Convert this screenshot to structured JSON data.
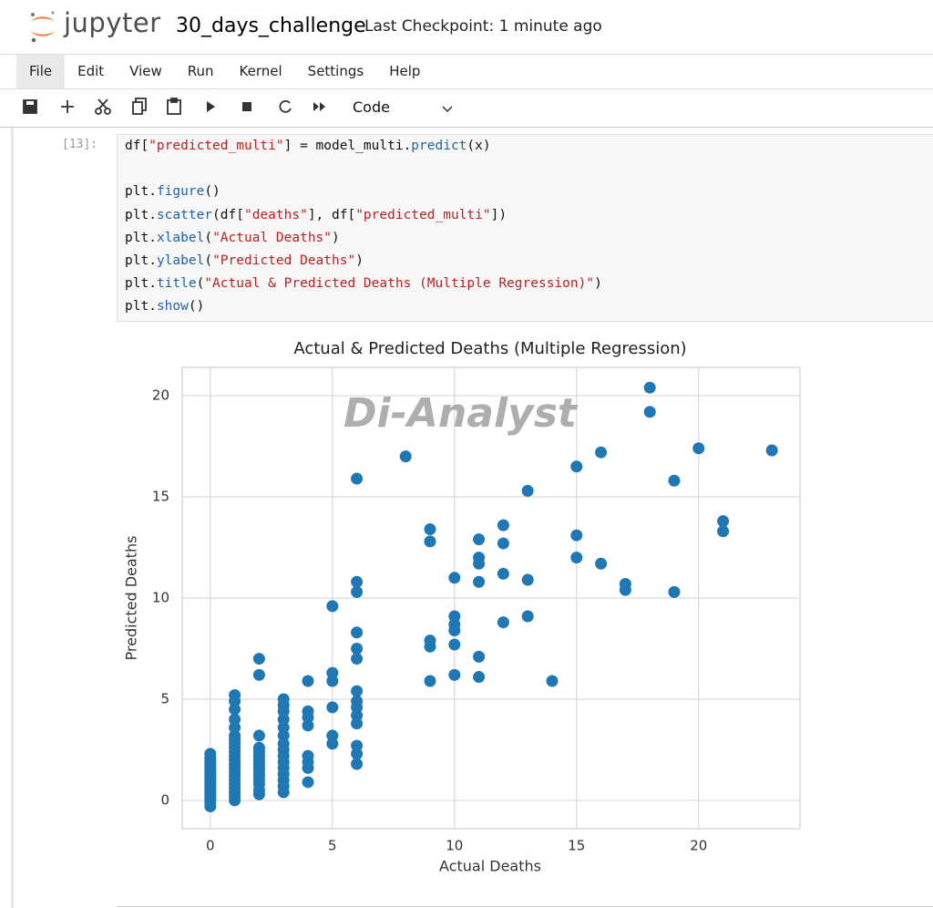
{
  "header": {
    "logo_text": "jupyter",
    "notebook_name": "30_days_challenge",
    "checkpoint": "Last Checkpoint: 1 minute ago"
  },
  "menu": [
    "File",
    "Edit",
    "View",
    "Run",
    "Kernel",
    "Settings",
    "Help"
  ],
  "toolbar": {
    "cell_type": "Code"
  },
  "cell": {
    "prompt": "[13]:",
    "lines": [
      "df[\"predicted_multi\"] = model_multi.predict(x)",
      "plt.figure()",
      "plt.scatter(df[\"deaths\"], df[\"predicted_multi\"])",
      "plt.xlabel(\"Actual Deaths\")",
      "plt.ylabel(\"Predicted Deaths\")",
      "plt.title(\"Actual & Predicted Deaths (Multiple Regression)\")",
      "plt.show()"
    ]
  },
  "chart_data": {
    "type": "scatter",
    "title": "Actual & Predicted Deaths (Multiple Regression)",
    "xlabel": "Actual Deaths",
    "ylabel": "Predicted Deaths",
    "annotation": "Di-Analyst",
    "color": "#1f77b4",
    "grid": true,
    "xlim": [
      -1.15,
      24.15
    ],
    "ylim": [
      -1.4,
      21.4
    ],
    "xticks": [
      0,
      5,
      10,
      15,
      20
    ],
    "yticks": [
      0,
      5,
      10,
      15,
      20
    ],
    "x": [
      0,
      0,
      0,
      0,
      0,
      0,
      0,
      0,
      0,
      0,
      0,
      0,
      0,
      0,
      0,
      0,
      0,
      0,
      0,
      0,
      0,
      0,
      0,
      0,
      0,
      1,
      1,
      1,
      1,
      1,
      1,
      1,
      1,
      1,
      1,
      1,
      1,
      1,
      1,
      1,
      1,
      1,
      1,
      1,
      1,
      1,
      1,
      2,
      2,
      2,
      2,
      2,
      2,
      2,
      2,
      2,
      2,
      2,
      2,
      2,
      2,
      2,
      3,
      3,
      3,
      3,
      3,
      3,
      3,
      3,
      3,
      3,
      3,
      3,
      3,
      3,
      3,
      4,
      4,
      4,
      4,
      4,
      4,
      4,
      4,
      5,
      5,
      5,
      5,
      5,
      5,
      6,
      6,
      6,
      6,
      6,
      6,
      6,
      6,
      6,
      6,
      6,
      6,
      6,
      6,
      8,
      9,
      9,
      9,
      9,
      9,
      10,
      10,
      10,
      10,
      10,
      10,
      11,
      11,
      11,
      11,
      11,
      11,
      12,
      12,
      12,
      12,
      13,
      13,
      13,
      14,
      15,
      15,
      15,
      16,
      16,
      17,
      17,
      18,
      18,
      19,
      19,
      20,
      21,
      21,
      23
    ],
    "values": [
      -0.3,
      -0.1,
      0,
      0.1,
      0.2,
      0.3,
      0.4,
      0.5,
      0.6,
      0.7,
      0.8,
      0.9,
      1.0,
      1.1,
      1.2,
      1.3,
      1.4,
      1.5,
      1.6,
      1.7,
      1.8,
      1.9,
      2.0,
      2.1,
      2.3,
      0,
      0.2,
      0.4,
      0.6,
      0.8,
      1.0,
      1.2,
      1.4,
      1.6,
      1.8,
      2.0,
      2.2,
      2.4,
      2.6,
      2.8,
      3.0,
      3.2,
      3.6,
      4.0,
      4.5,
      4.9,
      5.2,
      0.3,
      0.5,
      0.8,
      1.0,
      1.2,
      1.4,
      1.6,
      1.8,
      2.0,
      2.2,
      2.4,
      2.6,
      3.2,
      6.2,
      7.0,
      0.4,
      0.7,
      1.0,
      1.3,
      1.6,
      1.9,
      2.2,
      2.5,
      2.8,
      3.2,
      3.6,
      4.0,
      4.4,
      4.7,
      5.0,
      0.9,
      1.6,
      1.9,
      2.2,
      3.7,
      4.1,
      4.4,
      5.9,
      2.8,
      3.2,
      4.6,
      5.9,
      6.3,
      9.6,
      1.8,
      2.3,
      2.7,
      3.8,
      4.2,
      4.6,
      4.9,
      5.4,
      7.0,
      7.5,
      8.3,
      10.3,
      10.8,
      15.9,
      17.0,
      5.9,
      7.6,
      7.9,
      12.8,
      13.4,
      6.2,
      7.7,
      8.4,
      8.7,
      9.1,
      11.0,
      6.1,
      7.1,
      10.8,
      11.7,
      12.0,
      12.9,
      8.8,
      11.2,
      12.7,
      13.6,
      9.1,
      10.9,
      15.3,
      5.9,
      12.0,
      13.1,
      16.5,
      11.7,
      17.2,
      10.4,
      10.7,
      19.2,
      20.4,
      10.3,
      15.8,
      17.4,
      13.3,
      13.8,
      17.3
    ]
  }
}
